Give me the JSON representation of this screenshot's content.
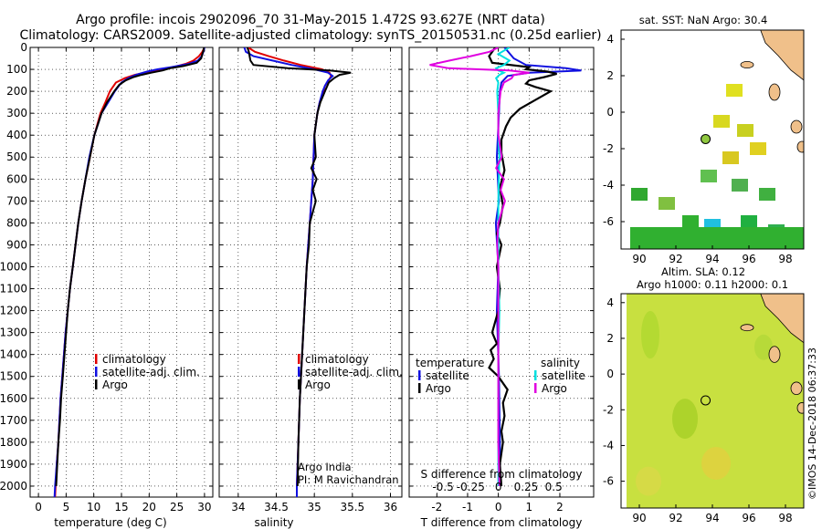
{
  "header": {
    "line1": "Argo profile: incois 2902096_70 31-May-2015 1.472S 93.627E (NRT data)",
    "line2": "Climatology: CARS2009. Satellite-adjusted climatology: synTS_20150531.nc (0.25d earlier)"
  },
  "credit": "©IMOS 14-Dec-2018 06:37:33",
  "colors": {
    "climatology": "#e00000",
    "satellite": "#1010e0",
    "argo": "#000000",
    "sat_salinity": "#00e0e0",
    "argo_salinity": "#e000e0"
  },
  "depth_axis": {
    "min": 0,
    "max": 2050,
    "ticks": [
      0,
      100,
      200,
      300,
      400,
      500,
      600,
      700,
      800,
      900,
      1000,
      1100,
      1200,
      1300,
      1400,
      1500,
      1600,
      1700,
      1800,
      1900,
      2000
    ]
  },
  "chart_data": [
    {
      "type": "line",
      "id": "temperature",
      "xlabel": "temperature (deg C)",
      "xlim": [
        -1.5,
        31.5
      ],
      "xticks": [
        0,
        5,
        10,
        15,
        20,
        25,
        30
      ],
      "legend": [
        "climatology",
        "satellite-adj. clim.",
        "Argo"
      ],
      "series": [
        {
          "name": "climatology",
          "depth": [
            0,
            20,
            40,
            60,
            75,
            90,
            100,
            110,
            125,
            140,
            160,
            200,
            250,
            300,
            400,
            500,
            600,
            700,
            800,
            900,
            1000,
            1100,
            1200,
            1300,
            1400,
            1500,
            1600,
            1700,
            1800,
            1900,
            2000,
            2050
          ],
          "values": [
            30,
            29.6,
            29,
            28,
            26.6,
            24.4,
            22.2,
            20.2,
            17.4,
            15.6,
            14,
            12.9,
            12.1,
            11.2,
            10.1,
            9.3,
            8.5,
            7.8,
            7.2,
            6.7,
            6.2,
            5.7,
            5.3,
            4.9,
            4.6,
            4.3,
            4.0,
            3.8,
            3.6,
            3.3,
            3.1,
            3.0
          ]
        },
        {
          "name": "satellite",
          "depth": [
            0,
            20,
            40,
            60,
            75,
            90,
            100,
            110,
            125,
            140,
            160,
            200,
            250,
            300,
            400,
            500,
            600,
            700,
            800,
            900,
            1000,
            1100,
            1200,
            1300,
            1400,
            1500,
            1600,
            1700,
            1800,
            1900,
            2000,
            2050
          ],
          "values": [
            30,
            29.8,
            29.5,
            28.8,
            27.2,
            24,
            21.5,
            19.6,
            17.6,
            16.2,
            15,
            13.8,
            12.6,
            11.4,
            10.1,
            9.2,
            8.5,
            7.8,
            7.2,
            6.7,
            6.2,
            5.7,
            5.3,
            4.9,
            4.6,
            4.3,
            4.0,
            3.8,
            3.6,
            3.3,
            3.0,
            2.9
          ]
        },
        {
          "name": "Argo",
          "depth": [
            0,
            15,
            30,
            50,
            70,
            85,
            95,
            105,
            115,
            125,
            135,
            150,
            170,
            200,
            250,
            300,
            400,
            500,
            600,
            700,
            800,
            900,
            1000,
            1100,
            1200,
            1300,
            1400,
            1500,
            1600,
            1700,
            1800,
            1900,
            2000
          ],
          "values": [
            29.9,
            29.8,
            29.6,
            29.4,
            28.6,
            26.2,
            23.8,
            22.4,
            20.4,
            18.6,
            17.2,
            15.8,
            14.6,
            13.7,
            12.4,
            11.4,
            10.1,
            9.3,
            8.5,
            7.8,
            7.2,
            6.7,
            6.2,
            5.7,
            5.3,
            5.0,
            4.7,
            4.4,
            4.1,
            3.9,
            3.6,
            3.4,
            3.2
          ]
        }
      ],
      "notes": []
    },
    {
      "type": "line",
      "id": "salinity",
      "xlabel": "salinity",
      "xlim": [
        33.75,
        36.15
      ],
      "xticks": [
        34,
        34.5,
        35,
        35.5,
        36
      ],
      "xticklabels": [
        "34",
        "34.5",
        "35",
        "35.5",
        "36"
      ],
      "legend": [
        "climatology",
        "satellite-adj. clim.",
        "Argo"
      ],
      "series": [
        {
          "name": "climatology",
          "depth": [
            0,
            20,
            40,
            60,
            80,
            100,
            115,
            130,
            150,
            175,
            200,
            250,
            300,
            400,
            500,
            600,
            700,
            800,
            900,
            1000,
            1200,
            1400,
            1600,
            1800,
            2000,
            2050
          ],
          "values": [
            34.13,
            34.22,
            34.4,
            34.6,
            34.82,
            35.1,
            35.2,
            35.22,
            35.19,
            35.14,
            35.12,
            35.07,
            35.04,
            35.0,
            34.99,
            34.98,
            34.96,
            34.94,
            34.92,
            34.9,
            34.87,
            34.84,
            34.81,
            34.79,
            34.77,
            34.77
          ]
        },
        {
          "name": "satellite",
          "depth": [
            0,
            20,
            40,
            60,
            80,
            100,
            115,
            130,
            150,
            175,
            200,
            250,
            300,
            400,
            500,
            600,
            700,
            800,
            900,
            1000,
            1200,
            1400,
            1600,
            1800,
            2000,
            2050
          ],
          "values": [
            34.08,
            34.1,
            34.2,
            34.45,
            34.7,
            35.0,
            35.18,
            35.24,
            35.18,
            35.14,
            35.11,
            35.07,
            35.04,
            35.0,
            34.99,
            34.98,
            34.96,
            34.94,
            34.92,
            34.9,
            34.87,
            34.84,
            34.81,
            34.79,
            34.77,
            34.77
          ]
        },
        {
          "name": "Argo",
          "depth": [
            0,
            20,
            40,
            60,
            80,
            95,
            105,
            115,
            125,
            140,
            160,
            200,
            250,
            300,
            400,
            500,
            550,
            600,
            650,
            700,
            800,
            900,
            1000,
            1200,
            1400,
            1600,
            1800,
            2000
          ],
          "values": [
            34.12,
            34.14,
            34.15,
            34.16,
            34.2,
            34.65,
            35.2,
            35.48,
            35.33,
            35.26,
            35.19,
            35.14,
            35.08,
            35.04,
            35.0,
            35.02,
            34.96,
            35.03,
            34.98,
            35.02,
            34.94,
            34.93,
            34.9,
            34.87,
            34.84,
            34.81,
            34.79,
            34.78
          ]
        }
      ],
      "notes": [
        "Argo India",
        "PI: M Ravichandran"
      ]
    },
    {
      "type": "line",
      "id": "difference",
      "xlabel": "T difference from climatology",
      "xlabel_top": "S difference from climatology",
      "xlim": [
        -2.9,
        3.1
      ],
      "xticks": [
        -2,
        -1,
        0,
        1,
        2
      ],
      "xticks_salinity": [
        -0.5,
        -0.25,
        0,
        0.25,
        0.5
      ],
      "xticklabels_salinity": [
        "-0.5",
        "-0.25",
        "0",
        "0.25",
        "0.5"
      ],
      "legend_left_title": "temperature",
      "legend_right_title": "salinity",
      "legend_left": [
        "satellite",
        "Argo"
      ],
      "legend_right": [
        "satellite",
        "Argo"
      ],
      "series": [
        {
          "name": "T satellite",
          "depth": [
            0,
            50,
            80,
            95,
            105,
            115,
            130,
            160,
            200,
            300,
            500,
            700,
            800,
            1000,
            1200,
            1500,
            1800,
            2000
          ],
          "values": [
            0.2,
            0.5,
            0.9,
            2.2,
            2.7,
            1.0,
            0.3,
            0.1,
            0.05,
            0.02,
            -0.05,
            0.02,
            -0.08,
            0.0,
            -0.05,
            0.02,
            0.05,
            0.05
          ]
        },
        {
          "name": "T Argo",
          "depth": [
            0,
            40,
            70,
            90,
            100,
            110,
            120,
            135,
            150,
            165,
            180,
            200,
            240,
            280,
            320,
            360,
            420,
            480,
            560,
            640,
            720,
            800,
            850,
            900,
            1000,
            1100,
            1200,
            1300,
            1350,
            1380,
            1420,
            1460,
            1500,
            1560,
            1620,
            1680,
            1750,
            1800,
            1850,
            1900,
            2000
          ],
          "values": [
            -0.1,
            -0.3,
            -0.2,
            1.0,
            0.9,
            1.6,
            1.9,
            1.5,
            1.0,
            0.9,
            1.2,
            1.7,
            1.2,
            0.7,
            0.4,
            0.25,
            0.1,
            0.1,
            0.2,
            0.05,
            0.15,
            0.05,
            -0.05,
            0.1,
            -0.05,
            0.05,
            0.0,
            -0.2,
            -0.05,
            -0.25,
            -0.15,
            -0.3,
            0.0,
            0.3,
            0.15,
            0.2,
            0.1,
            0.15,
            0.1,
            0.05,
            0.1
          ]
        },
        {
          "name": "S satellite",
          "depth": [
            0,
            30,
            60,
            80,
            95,
            105,
            115,
            125,
            140,
            160,
            200,
            300,
            400,
            500,
            700,
            1000,
            1200,
            1400,
            1600,
            1800,
            2000
          ],
          "values": [
            0.1,
            0.0,
            0.1,
            0.05,
            -0.02,
            0.0,
            0.05,
            0.01,
            -0.02,
            0.0,
            -0.01,
            0.0,
            0.0,
            0.01,
            0.0,
            0.0,
            0.01,
            0.0,
            0.0,
            0.0,
            0.0
          ]
        },
        {
          "name": "S Argo",
          "depth": [
            0,
            20,
            40,
            60,
            80,
            95,
            105,
            115,
            125,
            140,
            160,
            200,
            250,
            300,
            400,
            500,
            550,
            600,
            650,
            700,
            800,
            900,
            1000,
            1200,
            1400,
            1600,
            1800,
            2000
          ],
          "values": [
            0.0,
            -0.08,
            -0.25,
            -0.44,
            -0.62,
            -0.45,
            0.1,
            0.28,
            0.14,
            0.12,
            0.05,
            0.02,
            0.01,
            0.0,
            0.0,
            0.03,
            -0.02,
            0.05,
            0.02,
            0.06,
            0.0,
            -0.01,
            0.0,
            0.0,
            0.0,
            0.0,
            0.0,
            0.01
          ]
        }
      ],
      "notes": []
    }
  ],
  "sst_map": {
    "title": "sat. SST: NaN Argo: 30.4",
    "lon_range": [
      89,
      99
    ],
    "lat_range": [
      -7.5,
      4.5
    ],
    "xticks": [
      90,
      92,
      94,
      96,
      98
    ],
    "yticks": [
      4,
      2,
      0,
      -2,
      -4,
      -6
    ],
    "argo_position": {
      "lon": 93.627,
      "lat": -1.472
    }
  },
  "sla_map": {
    "title_line1": "Altim. SLA: 0.12",
    "title_line2": "Argo h1000: 0.11 h2000: 0.1",
    "lon_range": [
      89,
      99
    ],
    "lat_range": [
      -7.5,
      4.5
    ],
    "xticks": [
      90,
      92,
      94,
      96,
      98
    ],
    "yticks": [
      4,
      2,
      0,
      -2,
      -4,
      -6
    ],
    "argo_position": {
      "lon": 93.627,
      "lat": -1.472
    }
  }
}
